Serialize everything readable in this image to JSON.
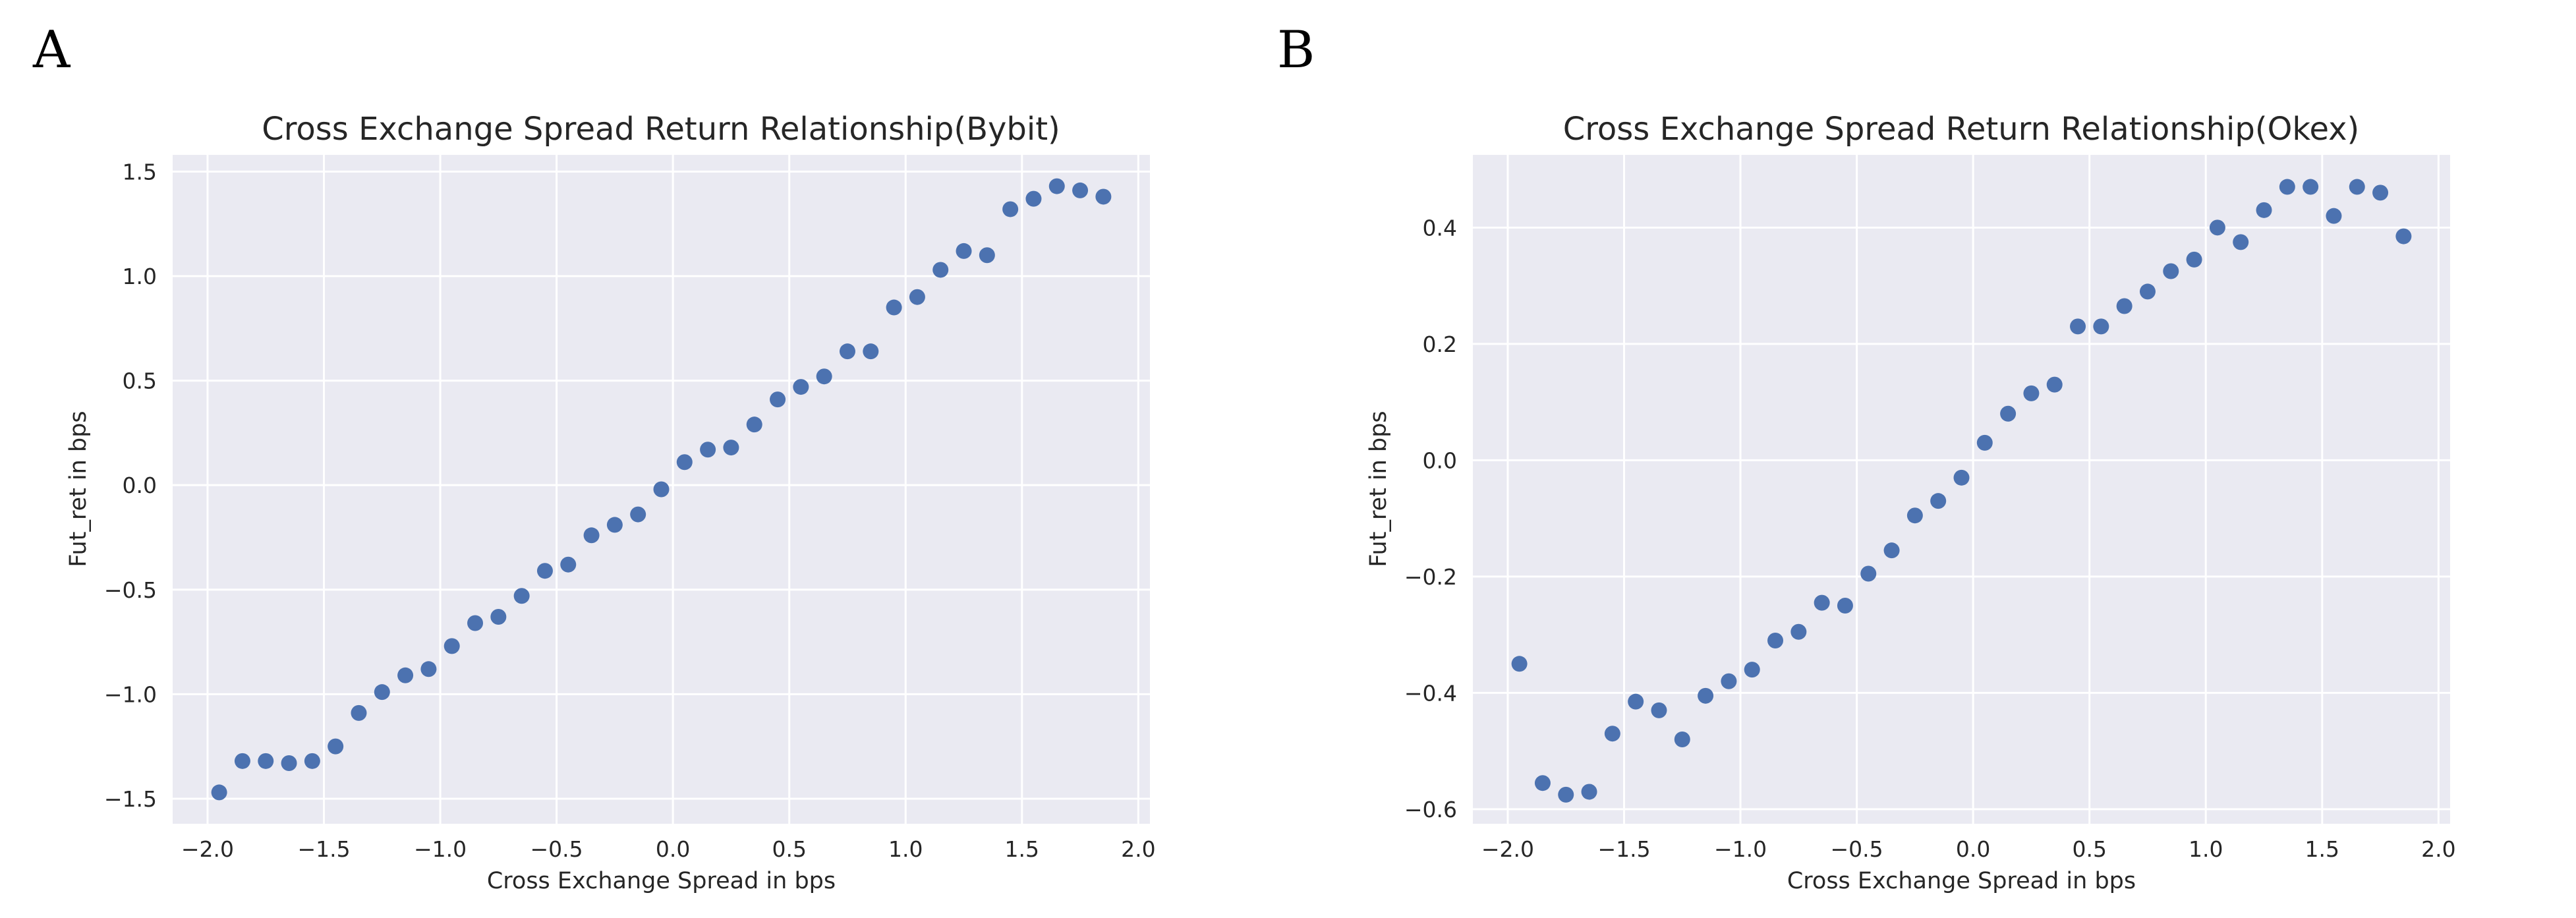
{
  "panels": [
    {
      "panel_label": "A",
      "chart_data": {
        "type": "scatter",
        "title": "Cross Exchange Spread Return Relationship(Bybit)",
        "xlabel": "Cross Exchange Spread in bps",
        "ylabel": "Fut_ret in bps",
        "xlim": [
          -2.15,
          2.05
        ],
        "ylim": [
          -1.62,
          1.58
        ],
        "xticks": [
          -2.0,
          -1.5,
          -1.0,
          -0.5,
          0.0,
          0.5,
          1.0,
          1.5,
          2.0
        ],
        "xtick_labels": [
          "−2.0",
          "−1.5",
          "−1.0",
          "−0.5",
          "0.0",
          "0.5",
          "1.0",
          "1.5",
          "2.0"
        ],
        "yticks": [
          -1.5,
          -1.0,
          -0.5,
          0.0,
          0.5,
          1.0,
          1.5
        ],
        "ytick_labels": [
          "−1.5",
          "−1.0",
          "−0.5",
          "0.0",
          "0.5",
          "1.0",
          "1.5"
        ],
        "grid": true,
        "color": "#4c72b0",
        "x": [
          -1.95,
          -1.85,
          -1.75,
          -1.65,
          -1.55,
          -1.45,
          -1.35,
          -1.25,
          -1.15,
          -1.05,
          -0.95,
          -0.85,
          -0.75,
          -0.65,
          -0.55,
          -0.45,
          -0.35,
          -0.25,
          -0.15,
          -0.05,
          0.05,
          0.15,
          0.25,
          0.35,
          0.45,
          0.55,
          0.65,
          0.75,
          0.85,
          0.95,
          1.05,
          1.15,
          1.25,
          1.35,
          1.45,
          1.55,
          1.65,
          1.75,
          1.85
        ],
        "y": [
          -1.47,
          -1.32,
          -1.32,
          -1.33,
          -1.32,
          -1.25,
          -1.09,
          -0.99,
          -0.91,
          -0.88,
          -0.77,
          -0.66,
          -0.63,
          -0.53,
          -0.41,
          -0.38,
          -0.24,
          -0.19,
          -0.14,
          -0.02,
          0.11,
          0.17,
          0.18,
          0.29,
          0.41,
          0.47,
          0.52,
          0.64,
          0.64,
          0.85,
          0.9,
          1.03,
          1.12,
          1.1,
          1.32,
          1.37,
          1.43,
          1.41,
          1.38
        ]
      }
    },
    {
      "panel_label": "B",
      "chart_data": {
        "type": "scatter",
        "title": "Cross Exchange Spread Return Relationship(Okex)",
        "xlabel": "Cross Exchange Spread in bps",
        "ylabel": "Fut_ret in bps",
        "xlim": [
          -2.15,
          2.05
        ],
        "ylim": [
          -0.625,
          0.525
        ],
        "xticks": [
          -2.0,
          -1.5,
          -1.0,
          -0.5,
          0.0,
          0.5,
          1.0,
          1.5,
          2.0
        ],
        "xtick_labels": [
          "−2.0",
          "−1.5",
          "−1.0",
          "−0.5",
          "0.0",
          "0.5",
          "1.0",
          "1.5",
          "2.0"
        ],
        "yticks": [
          -0.6,
          -0.4,
          -0.2,
          0.0,
          0.2,
          0.4
        ],
        "ytick_labels": [
          "−0.6",
          "−0.4",
          "−0.2",
          "0.0",
          "0.2",
          "0.4"
        ],
        "grid": true,
        "color": "#4c72b0",
        "x": [
          -1.95,
          -1.85,
          -1.75,
          -1.65,
          -1.55,
          -1.45,
          -1.35,
          -1.25,
          -1.15,
          -1.05,
          -0.95,
          -0.85,
          -0.75,
          -0.65,
          -0.55,
          -0.45,
          -0.35,
          -0.25,
          -0.15,
          -0.05,
          0.05,
          0.15,
          0.25,
          0.35,
          0.45,
          0.55,
          0.65,
          0.75,
          0.85,
          0.95,
          1.05,
          1.15,
          1.25,
          1.35,
          1.45,
          1.55,
          1.65,
          1.75,
          1.85
        ],
        "y": [
          -0.35,
          -0.555,
          -0.575,
          -0.57,
          -0.47,
          -0.415,
          -0.43,
          -0.48,
          -0.405,
          -0.38,
          -0.36,
          -0.31,
          -0.295,
          -0.245,
          -0.25,
          -0.195,
          -0.155,
          -0.095,
          -0.07,
          -0.03,
          0.03,
          0.08,
          0.115,
          0.13,
          0.23,
          0.23,
          0.265,
          0.29,
          0.325,
          0.345,
          0.4,
          0.375,
          0.43,
          0.47,
          0.47,
          0.42,
          0.47,
          0.46,
          0.385
        ]
      }
    }
  ]
}
